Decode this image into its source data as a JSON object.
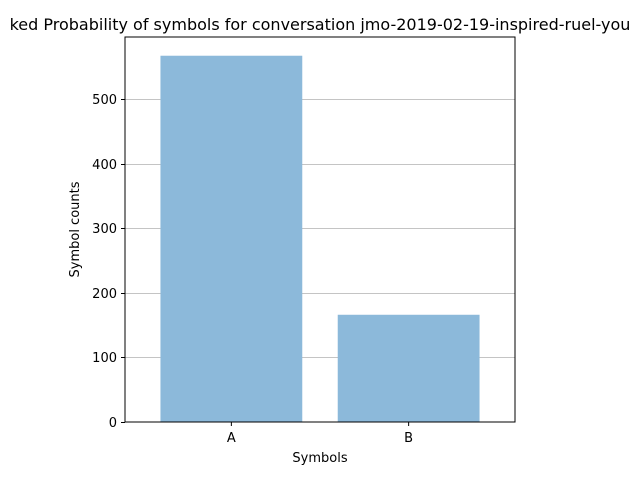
{
  "chart_data": {
    "type": "bar",
    "title": "ked Probability of symbols for conversation jmo-2019-02-19-inspired-ruel-you",
    "xlabel": "Symbols",
    "ylabel": "Symbol counts",
    "categories": [
      "A",
      "B"
    ],
    "values": [
      567,
      166
    ],
    "ylim": [
      0,
      596
    ],
    "yticks": [
      0,
      100,
      200,
      300,
      400,
      500
    ],
    "grid": "horizontal",
    "bar_color": "#8cb9da",
    "grid_color": "#b0b0b0"
  }
}
